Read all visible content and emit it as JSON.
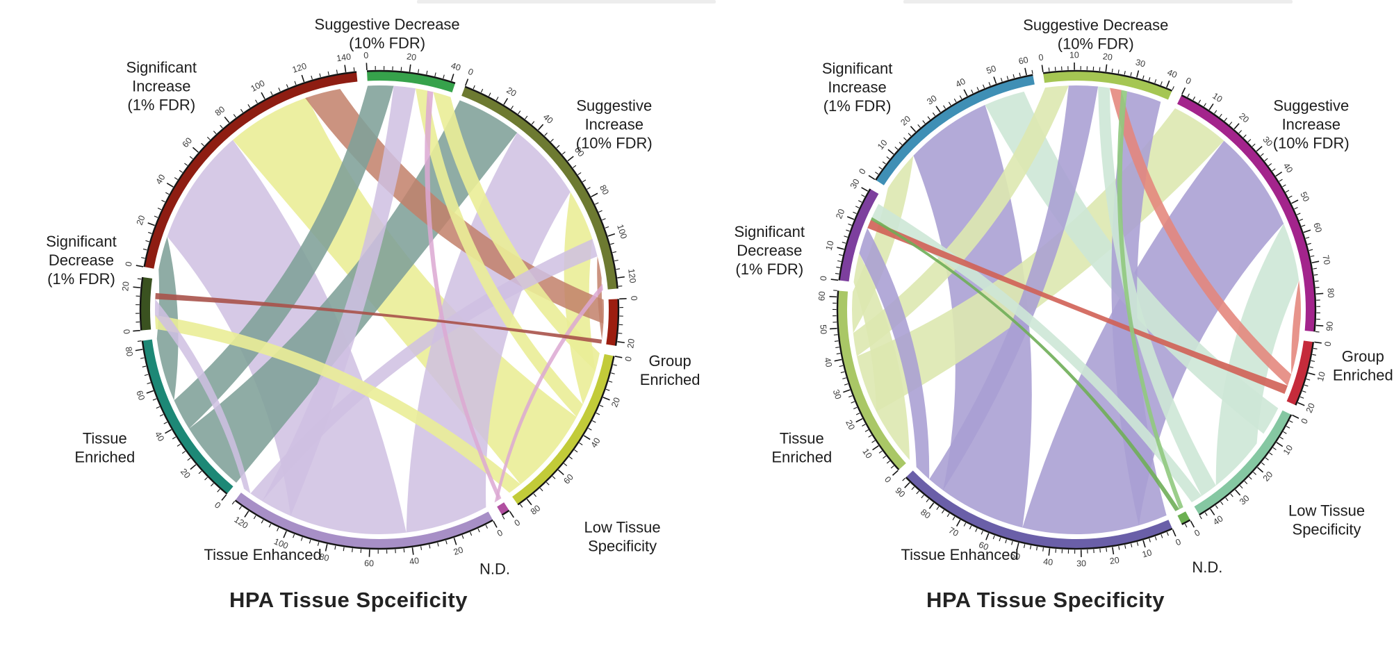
{
  "figure": {
    "background": "#ffffff",
    "titles": {
      "left": "HPA Tissue Spceificity",
      "right": "HPA Tissue Specificity"
    }
  },
  "chart_data": [
    {
      "type": "chord",
      "id": "left",
      "title": "HPA Tissue Spceificity",
      "legend_position": "none",
      "grid": false,
      "tick_major": 20,
      "tick_minor": 4,
      "start_angle": -3,
      "gap_deg": 2.5,
      "segments": [
        {
          "id": "sugDec",
          "label_lines": [
            "Suggestive Decrease",
            "(10% FDR)"
          ],
          "size": 42,
          "color": "#36a24b",
          "tick_range": [
            0,
            40
          ],
          "label_angle": 1.6,
          "label_r": 398
        },
        {
          "id": "sugInc",
          "label_lines": [
            "Suggestive",
            "Increase",
            "(10% FDR)"
          ],
          "size": 125,
          "color": "#6d7a31",
          "tick_range": [
            0,
            120
          ],
          "label_angle": 51.6,
          "label_r": 431
        },
        {
          "id": "groupEnr",
          "label_lines": [
            "Group",
            "Enriched"
          ],
          "size": 22,
          "color": "#9c1e10",
          "tick_range": [
            0,
            20
          ],
          "label_angle": 101.7,
          "label_r": 427
        },
        {
          "id": "lowTiss",
          "label_lines": [
            "Low Tissue",
            "Specificity"
          ],
          "size": 85,
          "color": "#c2cb39",
          "tick_range": [
            0,
            80
          ],
          "label_angle": 133,
          "label_r": 478
        },
        {
          "id": "nd",
          "label_lines": [
            "N.D."
          ],
          "size": 4,
          "color": "#b04fa0",
          "tick_range": [
            0,
            0
          ],
          "label_angle": 156,
          "label_r": 408
        },
        {
          "id": "tissEnh",
          "label_lines": [
            "Tissue Enhanced"
          ],
          "size": 128,
          "color": "#a78fc6",
          "tick_range": [
            0,
            120
          ],
          "label_angle": 205.5,
          "label_r": 390
        },
        {
          "id": "tissEnr",
          "label_lines": [
            "Tissue",
            "Enriched"
          ],
          "size": 84,
          "color": "#1d8876",
          "tick_range": [
            0,
            80
          ],
          "label_angle": 243.4,
          "label_r": 442
        },
        {
          "id": "sigDec",
          "label_lines": [
            "Significant",
            "Decrease",
            "(1% FDR)"
          ],
          "size": 25,
          "color": "#3a5220",
          "tick_range": [
            0,
            20
          ],
          "label_angle": 279.5,
          "label_r": 435
        },
        {
          "id": "sigInc",
          "label_lines": [
            "Significant",
            "Increase",
            "(1% FDR)"
          ],
          "size": 145,
          "color": "#8e1d12",
          "tick_range": [
            0,
            140
          ],
          "label_angle": 315.8,
          "label_r": 450
        }
      ],
      "ribbons": [
        {
          "from": [
            "tissEnh",
            42,
            101
          ],
          "to": [
            "sigInc",
            17,
            76
          ],
          "color": "#cfc0e2",
          "opacity": 0.85
        },
        {
          "from": [
            "tissEnh",
            0,
            42
          ],
          "to": [
            "sugInc",
            33,
            73
          ],
          "color": "#cfc0e2",
          "opacity": 0.85
        },
        {
          "from": [
            "tissEnr",
            0,
            36
          ],
          "to": [
            "sugInc",
            0,
            33
          ],
          "color": "#7fa098",
          "opacity": 0.88
        },
        {
          "from": [
            "lowTiss",
            34,
            78
          ],
          "to": [
            "sigInc",
            76,
            119
          ],
          "color": "#eaed97",
          "opacity": 0.9
        },
        {
          "from": [
            "lowTiss",
            9,
            27
          ],
          "to": [
            "sugInc",
            73,
            99
          ],
          "color": "#eaed97",
          "opacity": 0.9
        },
        {
          "from": [
            "tissEnr",
            52,
            84
          ],
          "to": [
            "sigInc",
            0,
            17
          ],
          "color": "#7fa098",
          "opacity": 0.88
        },
        {
          "from": [
            "tissEnr",
            36,
            52
          ],
          "to": [
            "sugDec",
            0,
            13
          ],
          "color": "#7fa098",
          "opacity": 0.88
        },
        {
          "from": [
            "tissEnh",
            101,
            117
          ],
          "to": [
            "sugDec",
            13,
            24
          ],
          "color": "#cfc0e2",
          "opacity": 0.85
        },
        {
          "from": [
            "lowTiss",
            27,
            34
          ],
          "to": [
            "sugDec",
            24,
            30
          ],
          "color": "#eaed97",
          "opacity": 0.9
        },
        {
          "from": [
            "lowTiss",
            0,
            9
          ],
          "to": [
            "sugDec",
            33,
            42
          ],
          "color": "#eaed97",
          "opacity": 0.9
        },
        {
          "from": [
            "tissEnh",
            117,
            124
          ],
          "to": [
            "sugInc",
            99,
            108
          ],
          "color": "#cfc0e2",
          "opacity": 0.85
        },
        {
          "from": [
            "groupEnr",
            0,
            12
          ],
          "to": [
            "sigInc",
            118,
            136
          ],
          "color": "#c2806a",
          "opacity": 0.85
        },
        {
          "from": [
            "groupEnr",
            12,
            20
          ],
          "to": [
            "sugInc",
            108,
            119
          ],
          "color": "#c2806a",
          "opacity": 0.85
        },
        {
          "from": [
            "lowTiss",
            78,
            85
          ],
          "to": [
            "sigDec",
            0,
            7
          ],
          "color": "#eaed97",
          "opacity": 0.9
        },
        {
          "from": [
            "tissEnh",
            124,
            128
          ],
          "to": [
            "sigDec",
            7,
            15
          ],
          "color": "#cfc0e2",
          "opacity": 0.85
        },
        {
          "from": [
            "nd",
            0,
            2
          ],
          "to": [
            "sugDec",
            30,
            33
          ],
          "color": "#dca8d2",
          "opacity": 0.85
        },
        {
          "from": [
            "nd",
            2,
            4
          ],
          "to": [
            "sugInc",
            122,
            125
          ],
          "color": "#dca8d2",
          "opacity": 0.85
        },
        {
          "from": [
            "groupEnr",
            20,
            22
          ],
          "to": [
            "sigDec",
            15,
            18
          ],
          "color": "#a8524a",
          "opacity": 0.9
        }
      ]
    },
    {
      "type": "chord",
      "id": "right",
      "title": "HPA Tissue Specificity",
      "legend_position": "none",
      "grid": false,
      "tick_major": 10,
      "tick_minor": 2,
      "start_angle": -8,
      "gap_deg": 2.5,
      "segments": [
        {
          "id": "sugDec",
          "label_lines": [
            "Suggestive Decrease",
            "(10% FDR)"
          ],
          "size": 42,
          "color": "#a5c653",
          "tick_range": [
            0,
            40
          ],
          "label_angle": 4,
          "label_r": 398
        },
        {
          "id": "sugInc",
          "label_lines": [
            "Suggestive",
            "Increase",
            "(10% FDR)"
          ],
          "size": 92,
          "color": "#a3248c",
          "tick_range": [
            0,
            90
          ],
          "label_angle": 51.6,
          "label_r": 431
        },
        {
          "id": "groupEnr",
          "label_lines": [
            "Group",
            "Enriched"
          ],
          "size": 21,
          "color": "#c52b3b",
          "tick_range": [
            0,
            20
          ],
          "label_angle": 101,
          "label_r": 420
        },
        {
          "id": "lowTiss",
          "label_lines": [
            "Low Tissue",
            "Specificity"
          ],
          "size": 44,
          "color": "#85c7a2",
          "tick_range": [
            0,
            40
          ],
          "label_angle": 130,
          "label_r": 470
        },
        {
          "id": "nd",
          "label_lines": [
            "N.D."
          ],
          "size": 3,
          "color": "#6cb052",
          "tick_range": [
            0,
            0
          ],
          "label_angle": 153,
          "label_r": 415
        },
        {
          "id": "tissEnh",
          "label_lines": [
            "Tissue Enhanced"
          ],
          "size": 92,
          "color": "#6a5fa8",
          "tick_range": [
            0,
            90
          ],
          "label_angle": 205.5,
          "label_r": 390
        },
        {
          "id": "tissEnr",
          "label_lines": [
            "Tissue",
            "Enriched"
          ],
          "size": 62,
          "color": "#a9c766",
          "tick_range": [
            0,
            60
          ],
          "label_angle": 243.4,
          "label_r": 442
        },
        {
          "id": "sigDec",
          "label_lines": [
            "Significant",
            "Decrease",
            "(1% FDR)"
          ],
          "size": 31,
          "color": "#7d3f9e",
          "tick_range": [
            0,
            30
          ],
          "label_angle": 281,
          "label_r": 450
        },
        {
          "id": "sigInc",
          "label_lines": [
            "Significant",
            "Increase",
            "(1% FDR)"
          ],
          "size": 62,
          "color": "#3f8fb5",
          "tick_range": [
            0,
            60
          ],
          "label_angle": 315.5,
          "label_r": 450
        }
      ],
      "ribbons": [
        {
          "from": [
            "tissEnh",
            10,
            50
          ],
          "to": [
            "sugInc",
            20,
            55
          ],
          "color": "#a99ed3",
          "opacity": 0.88
        },
        {
          "from": [
            "tissEnh",
            50,
            80
          ],
          "to": [
            "sigInc",
            14,
            44
          ],
          "color": "#a99ed3",
          "opacity": 0.88
        },
        {
          "from": [
            "tissEnh",
            80,
            86
          ],
          "to": [
            "sugDec",
            8,
            18
          ],
          "color": "#a99ed3",
          "opacity": 0.88
        },
        {
          "from": [
            "tissEnh",
            0,
            10
          ],
          "to": [
            "sugDec",
            28,
            40
          ],
          "color": "#a99ed3",
          "opacity": 0.88
        },
        {
          "from": [
            "tissEnh",
            86,
            92
          ],
          "to": [
            "sigDec",
            10,
            19
          ],
          "color": "#a99ed3",
          "opacity": 0.88
        },
        {
          "from": [
            "tissEnr",
            20,
            40
          ],
          "to": [
            "sugInc",
            0,
            20
          ],
          "color": "#dde8b0",
          "opacity": 0.9
        },
        {
          "from": [
            "tissEnr",
            48,
            62
          ],
          "to": [
            "sigInc",
            0,
            14
          ],
          "color": "#dde8b0",
          "opacity": 0.9
        },
        {
          "from": [
            "tissEnr",
            40,
            48
          ],
          "to": [
            "sugDec",
            0,
            8
          ],
          "color": "#dde8b0",
          "opacity": 0.9
        },
        {
          "from": [
            "tissEnr",
            0,
            20
          ],
          "to": [
            "sigDec",
            0,
            10
          ],
          "color": "#dde8b0",
          "opacity": 0.9
        },
        {
          "from": [
            "lowTiss",
            14,
            34
          ],
          "to": [
            "sugInc",
            55,
            75
          ],
          "color": "#cde7d6",
          "opacity": 0.9
        },
        {
          "from": [
            "lowTiss",
            0,
            10
          ],
          "to": [
            "sigInc",
            44,
            58
          ],
          "color": "#cde7d6",
          "opacity": 0.9
        },
        {
          "from": [
            "lowTiss",
            34,
            40
          ],
          "to": [
            "sugDec",
            18,
            22
          ],
          "color": "#cde7d6",
          "opacity": 0.9
        },
        {
          "from": [
            "lowTiss",
            40,
            44
          ],
          "to": [
            "sigDec",
            23,
            28
          ],
          "color": "#cde7d6",
          "opacity": 0.9
        },
        {
          "from": [
            "groupEnr",
            0,
            12
          ],
          "to": [
            "sugInc",
            75,
            88
          ],
          "color": "#e4857b",
          "opacity": 0.88
        },
        {
          "from": [
            "groupEnr",
            12,
            16
          ],
          "to": [
            "sugDec",
            22,
            26
          ],
          "color": "#e4857b",
          "opacity": 0.88
        },
        {
          "from": [
            "groupEnr",
            16,
            19
          ],
          "to": [
            "sigDec",
            19,
            22
          ],
          "color": "#d06055",
          "opacity": 0.9
        },
        {
          "from": [
            "nd",
            0,
            1.5
          ],
          "to": [
            "sugDec",
            26,
            28
          ],
          "color": "#90c97e",
          "opacity": 0.9
        },
        {
          "from": [
            "nd",
            1.5,
            3
          ],
          "to": [
            "sigDec",
            22,
            23
          ],
          "color": "#6fae58",
          "opacity": 0.9
        }
      ]
    }
  ]
}
